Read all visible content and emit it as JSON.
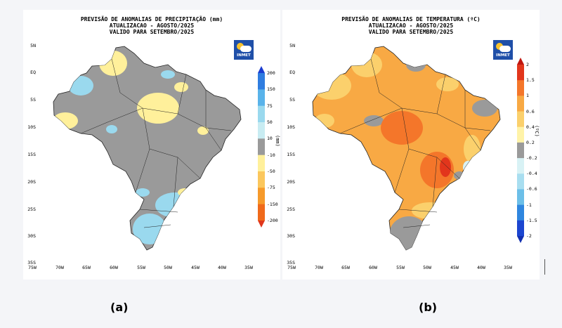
{
  "panel_a": {
    "title_lines": [
      "PREVISÃO DE ANOMALIAS DE PRECIPITAÇÃO (mm)",
      "ATUALIZACAO - AGOSTO/2025",
      "VALIDO PARA SETEMBRO/2025"
    ],
    "unit": "(mm)",
    "colorbar_ticks": [
      "200",
      "150",
      "75",
      "50",
      "10",
      "-10",
      "-50",
      "-75",
      "-150",
      "-200"
    ],
    "colorbar_colors": [
      "#1b3cd0",
      "#2f7de0",
      "#59b3ea",
      "#9ad9ee",
      "#c8ecf2",
      "#9a9a9a",
      "#fff09b",
      "#fbc75d",
      "#f69a2b",
      "#f06a1b",
      "#e0371c"
    ],
    "caption": "(a)",
    "logo_text": "INMET"
  },
  "panel_b": {
    "title_lines": [
      "PREVISÃO DE ANOMALIAS DE TEMPERATURA (ºC)",
      "ATUALIZACAO - AGOSTO/2025",
      "VALIDO PARA SETEMBRO/2025"
    ],
    "unit": "(ºC)",
    "colorbar_ticks": [
      "2",
      "1.5",
      "1",
      "0.6",
      "0.4",
      "0.2",
      "-0.2",
      "-0.4",
      "-0.6",
      "-1",
      "-1.5",
      "-2"
    ],
    "colorbar_colors": [
      "#c0160f",
      "#e2361c",
      "#f4762a",
      "#f8a944",
      "#fbd06c",
      "#fff3a8",
      "#9a9a9a",
      "#d8f2f5",
      "#a8def0",
      "#6cbfe8",
      "#2f86df",
      "#1c46d0",
      "#1330b0"
    ],
    "caption": "(b)",
    "logo_text": "INMET"
  },
  "lat_labels": [
    "5N",
    "EQ",
    "5S",
    "10S",
    "15S",
    "20S",
    "25S",
    "30S",
    "35S"
  ],
  "lon_labels": [
    "75W",
    "70W",
    "65W",
    "60W",
    "55W",
    "50W",
    "45W",
    "40W",
    "35W"
  ]
}
